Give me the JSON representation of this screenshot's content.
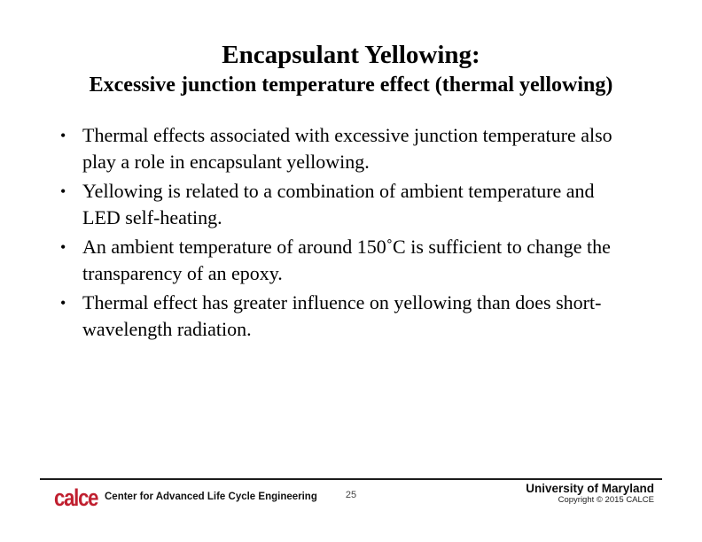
{
  "slide": {
    "title_line1": "Encapsulant Yellowing:",
    "title_line2": "Excessive junction temperature effect (thermal yellowing)",
    "bullet_char": "•",
    "bullets": [
      "Thermal effects associated with excessive junction temperature also play a role in encapsulant yellowing.",
      "Yellowing is related to a combination of ambient temperature and LED self-heating.",
      "An ambient temperature of around 150˚C is sufficient to change the transparency of an epoxy.",
      "Thermal effect has greater influence on yellowing than does short-wavelength radiation."
    ],
    "footer": {
      "logo_text": "calce",
      "logo_color": "#c01f2f",
      "org_name": "Center for Advanced Life Cycle Engineering",
      "page_number": "25",
      "university": "University of Maryland",
      "copyright": "Copyright © 2015 CALCE"
    }
  }
}
